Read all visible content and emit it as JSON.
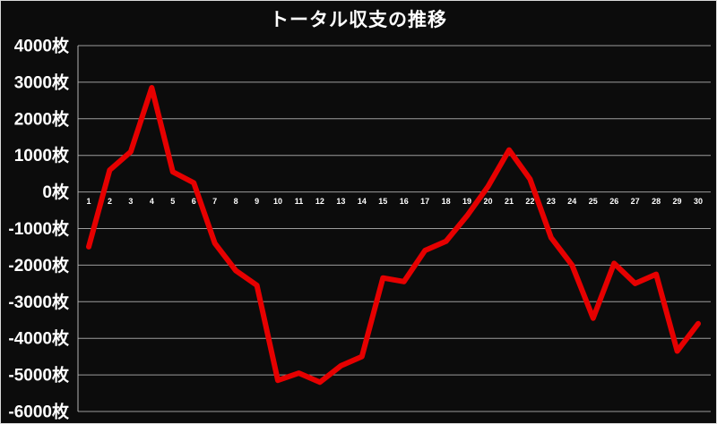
{
  "title": "トータル収支の推移",
  "colors": {
    "line": "#e60000",
    "grid": "#9d9d9d",
    "axis": "#b5b5b5",
    "background": "#0c0c0c",
    "text": "#ffffff",
    "border": "#d9d9d9"
  },
  "chart_data": {
    "type": "line",
    "title": "トータル収支の推移",
    "unit": "枚",
    "x": [
      1,
      2,
      3,
      4,
      5,
      6,
      7,
      8,
      9,
      10,
      11,
      12,
      13,
      14,
      15,
      16,
      17,
      18,
      19,
      20,
      21,
      22,
      23,
      24,
      25,
      26,
      27,
      28,
      29,
      30
    ],
    "values": [
      -1500,
      600,
      1100,
      2850,
      550,
      250,
      -1400,
      -2150,
      -2550,
      -5150,
      -4950,
      -5200,
      -4750,
      -4500,
      -2350,
      -2450,
      -1600,
      -1350,
      -650,
      150,
      1150,
      350,
      -1250,
      -2000,
      -3450,
      -1950,
      -2500,
      -2250,
      -4350,
      -3600
    ],
    "ylim": [
      -6000,
      4000
    ],
    "ytick_step": 1000,
    "ytick_labels": [
      "4000枚",
      "3000枚",
      "2000枚",
      "1000枚",
      "0枚",
      "-1000枚",
      "-2000枚",
      "-3000枚",
      "-4000枚",
      "-5000枚",
      "-6000枚"
    ],
    "xlabel": "",
    "ylabel": "",
    "grid": true,
    "legend_position": "none"
  }
}
